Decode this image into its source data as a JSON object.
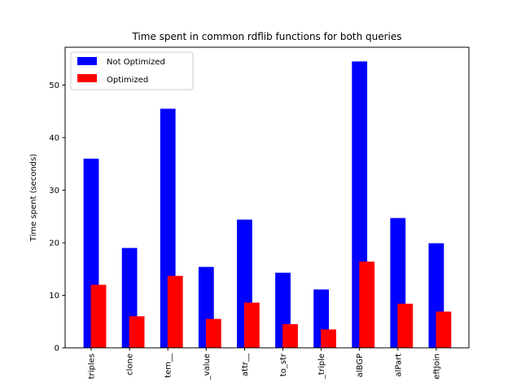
{
  "chart_data": {
    "type": "bar",
    "title": "Time spent in common rdflib functions for both queries",
    "xlabel": "",
    "ylabel": "Time spent (seconds)",
    "ylim": [
      0,
      57.2
    ],
    "yticks": [
      0,
      10,
      20,
      30,
      40,
      50
    ],
    "categories": [
      "triples",
      "clone",
      "tem__",
      "_value",
      "attr__",
      "to_str",
      "_triple",
      "alBGP",
      "alPart",
      "eftJoin"
    ],
    "series": [
      {
        "name": "Not Optimized",
        "color": "#0000ff",
        "values": [
          36.0,
          19.0,
          45.5,
          15.4,
          24.4,
          14.3,
          11.1,
          54.5,
          24.7,
          19.9
        ]
      },
      {
        "name": "Optimized",
        "color": "#ff0000",
        "values": [
          12.0,
          6.0,
          13.7,
          5.5,
          8.6,
          4.5,
          3.5,
          16.4,
          8.4,
          6.9
        ]
      }
    ],
    "legend_position": "top-left",
    "grid": false
  }
}
